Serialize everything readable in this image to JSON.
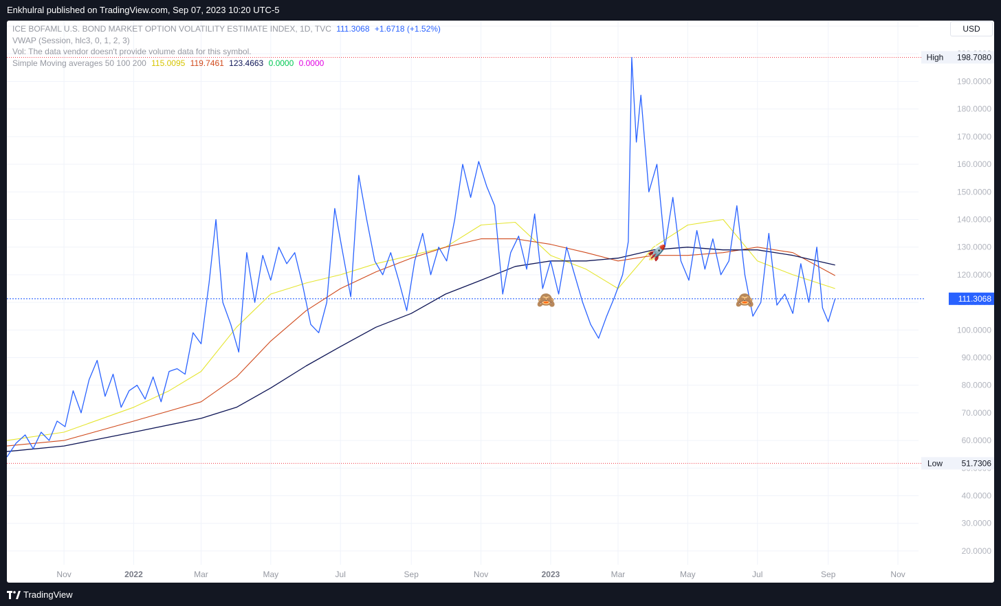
{
  "header": {
    "published_text": "Enkhulral published on TradingView.com, Sep 07, 2023 10:20 UTC-5"
  },
  "legend": {
    "symbol_line": "ICE BOFAML U.S. BOND MARKET OPTION VOLATILITY ESTIMATE INDEX, 1D, TVC",
    "last_value": "111.3068",
    "change": "+1.6718 (+1.52%)",
    "vwap_line": "VWAP (Session, hlc3, 0, 1, 2, 3)",
    "vol_line": "Vol: The data vendor doesn't provide volume data for this symbol.",
    "sma_label": "Simple Moving averages 50 100 200",
    "sma_values": [
      "115.0095",
      "119.7461",
      "123.4663",
      "0.0000",
      "0.0000"
    ]
  },
  "currency_button": "USD",
  "footer": {
    "brand": "TradingView"
  },
  "colors": {
    "price": "#2962ff",
    "sma50": "#e5e52f",
    "sma100": "#d04a1c",
    "sma200": "#0d1455",
    "sma_extra1": "#00c853",
    "sma_extra2": "#e100e1",
    "high_low_line": "#f23645",
    "last_price_line": "#2962ff"
  },
  "chart_data": {
    "type": "line",
    "ylim": [
      15,
      212
    ],
    "y_ticks": [
      20,
      30,
      40,
      50,
      60,
      70,
      80,
      90,
      100,
      110,
      120,
      130,
      140,
      150,
      160,
      170,
      180,
      190,
      200,
      210
    ],
    "x_ticks": [
      {
        "label": "Nov",
        "date": "2021-11-01"
      },
      {
        "label": "2022",
        "date": "2022-01-01"
      },
      {
        "label": "Mar",
        "date": "2022-03-01"
      },
      {
        "label": "May",
        "date": "2022-05-01"
      },
      {
        "label": "Jul",
        "date": "2022-07-01"
      },
      {
        "label": "Sep",
        "date": "2022-09-01"
      },
      {
        "label": "Nov",
        "date": "2022-11-01"
      },
      {
        "label": "2023",
        "date": "2023-01-01"
      },
      {
        "label": "Mar",
        "date": "2023-03-01"
      },
      {
        "label": "May",
        "date": "2023-05-01"
      },
      {
        "label": "Jul",
        "date": "2023-07-01"
      },
      {
        "label": "Sep",
        "date": "2023-09-01"
      },
      {
        "label": "Nov",
        "date": "2023-11-01"
      }
    ],
    "x_range": [
      "2021-09-12",
      "2023-11-19"
    ],
    "high": {
      "label": "High",
      "value": "198.7080",
      "y": 198.708
    },
    "low": {
      "label": "Low",
      "value": "51.7306",
      "y": 51.7306
    },
    "last": {
      "value": "111.3068",
      "y": 111.3068
    },
    "series": [
      {
        "key": "price",
        "points": [
          [
            "2021-09-12",
            54
          ],
          [
            "2021-09-20",
            59
          ],
          [
            "2021-09-28",
            62
          ],
          [
            "2021-10-05",
            57
          ],
          [
            "2021-10-12",
            63
          ],
          [
            "2021-10-19",
            60
          ],
          [
            "2021-10-26",
            67
          ],
          [
            "2021-11-02",
            65
          ],
          [
            "2021-11-09",
            78
          ],
          [
            "2021-11-16",
            70
          ],
          [
            "2021-11-23",
            82
          ],
          [
            "2021-11-30",
            89
          ],
          [
            "2021-12-07",
            76
          ],
          [
            "2021-12-14",
            84
          ],
          [
            "2021-12-21",
            72
          ],
          [
            "2021-12-28",
            78
          ],
          [
            "2022-01-04",
            80
          ],
          [
            "2022-01-11",
            75
          ],
          [
            "2022-01-18",
            83
          ],
          [
            "2022-01-25",
            74
          ],
          [
            "2022-02-01",
            85
          ],
          [
            "2022-02-08",
            86
          ],
          [
            "2022-02-15",
            84
          ],
          [
            "2022-02-22",
            99
          ],
          [
            "2022-03-01",
            95
          ],
          [
            "2022-03-08",
            117
          ],
          [
            "2022-03-14",
            140
          ],
          [
            "2022-03-20",
            110
          ],
          [
            "2022-03-27",
            102
          ],
          [
            "2022-04-03",
            92
          ],
          [
            "2022-04-10",
            128
          ],
          [
            "2022-04-17",
            110
          ],
          [
            "2022-04-24",
            127
          ],
          [
            "2022-05-01",
            118
          ],
          [
            "2022-05-08",
            130
          ],
          [
            "2022-05-15",
            124
          ],
          [
            "2022-05-22",
            128
          ],
          [
            "2022-05-29",
            116
          ],
          [
            "2022-06-05",
            102
          ],
          [
            "2022-06-12",
            99
          ],
          [
            "2022-06-19",
            110
          ],
          [
            "2022-06-26",
            144
          ],
          [
            "2022-07-03",
            128
          ],
          [
            "2022-07-10",
            112
          ],
          [
            "2022-07-17",
            156
          ],
          [
            "2022-07-24",
            140
          ],
          [
            "2022-07-31",
            125
          ],
          [
            "2022-08-07",
            120
          ],
          [
            "2022-08-14",
            128
          ],
          [
            "2022-08-21",
            118
          ],
          [
            "2022-08-28",
            107
          ],
          [
            "2022-09-04",
            125
          ],
          [
            "2022-09-11",
            135
          ],
          [
            "2022-09-18",
            120
          ],
          [
            "2022-09-25",
            130
          ],
          [
            "2022-10-02",
            125
          ],
          [
            "2022-10-09",
            140
          ],
          [
            "2022-10-16",
            160
          ],
          [
            "2022-10-23",
            148
          ],
          [
            "2022-10-30",
            161
          ],
          [
            "2022-11-06",
            152
          ],
          [
            "2022-11-13",
            145
          ],
          [
            "2022-11-20",
            113
          ],
          [
            "2022-11-27",
            128
          ],
          [
            "2022-12-04",
            134
          ],
          [
            "2022-12-11",
            122
          ],
          [
            "2022-12-18",
            142
          ],
          [
            "2022-12-25",
            115
          ],
          [
            "2023-01-01",
            125
          ],
          [
            "2023-01-08",
            113
          ],
          [
            "2023-01-15",
            130
          ],
          [
            "2023-01-22",
            120
          ],
          [
            "2023-01-29",
            110
          ],
          [
            "2023-02-05",
            102
          ],
          [
            "2023-02-12",
            97
          ],
          [
            "2023-02-19",
            105
          ],
          [
            "2023-02-26",
            112
          ],
          [
            "2023-03-05",
            120
          ],
          [
            "2023-03-10",
            132
          ],
          [
            "2023-03-13",
            198.7
          ],
          [
            "2023-03-17",
            168
          ],
          [
            "2023-03-21",
            185
          ],
          [
            "2023-03-28",
            150
          ],
          [
            "2023-04-04",
            160
          ],
          [
            "2023-04-11",
            130
          ],
          [
            "2023-04-18",
            148
          ],
          [
            "2023-04-25",
            125
          ],
          [
            "2023-05-02",
            118
          ],
          [
            "2023-05-09",
            136
          ],
          [
            "2023-05-16",
            122
          ],
          [
            "2023-05-23",
            133
          ],
          [
            "2023-05-30",
            120
          ],
          [
            "2023-06-06",
            125
          ],
          [
            "2023-06-13",
            145
          ],
          [
            "2023-06-20",
            120
          ],
          [
            "2023-06-27",
            105
          ],
          [
            "2023-07-04",
            110
          ],
          [
            "2023-07-11",
            135
          ],
          [
            "2023-07-18",
            109
          ],
          [
            "2023-07-25",
            113
          ],
          [
            "2023-08-01",
            106
          ],
          [
            "2023-08-08",
            124
          ],
          [
            "2023-08-15",
            110
          ],
          [
            "2023-08-22",
            130
          ],
          [
            "2023-08-27",
            108
          ],
          [
            "2023-09-01",
            103
          ],
          [
            "2023-09-07",
            111.3
          ]
        ]
      },
      {
        "key": "sma50",
        "points": [
          [
            "2021-09-12",
            60
          ],
          [
            "2021-11-01",
            63
          ],
          [
            "2022-01-01",
            72
          ],
          [
            "2022-02-01",
            78
          ],
          [
            "2022-03-01",
            85
          ],
          [
            "2022-04-01",
            101
          ],
          [
            "2022-05-01",
            113
          ],
          [
            "2022-06-01",
            117
          ],
          [
            "2022-07-01",
            120
          ],
          [
            "2022-08-01",
            124
          ],
          [
            "2022-09-01",
            127
          ],
          [
            "2022-10-01",
            130
          ],
          [
            "2022-11-01",
            138
          ],
          [
            "2022-12-01",
            139
          ],
          [
            "2023-01-01",
            127
          ],
          [
            "2023-02-01",
            122
          ],
          [
            "2023-03-01",
            115
          ],
          [
            "2023-04-01",
            130
          ],
          [
            "2023-05-01",
            138
          ],
          [
            "2023-06-01",
            140
          ],
          [
            "2023-07-01",
            125
          ],
          [
            "2023-08-01",
            120
          ],
          [
            "2023-09-07",
            115
          ]
        ]
      },
      {
        "key": "sma100",
        "points": [
          [
            "2021-09-12",
            58
          ],
          [
            "2021-11-01",
            60
          ],
          [
            "2022-01-01",
            67
          ],
          [
            "2022-03-01",
            74
          ],
          [
            "2022-04-01",
            83
          ],
          [
            "2022-05-01",
            96
          ],
          [
            "2022-06-01",
            107
          ],
          [
            "2022-07-01",
            115
          ],
          [
            "2022-08-01",
            121
          ],
          [
            "2022-09-01",
            126
          ],
          [
            "2022-10-01",
            130
          ],
          [
            "2022-11-01",
            133
          ],
          [
            "2022-12-01",
            133
          ],
          [
            "2023-01-01",
            131
          ],
          [
            "2023-02-01",
            128
          ],
          [
            "2023-03-01",
            125
          ],
          [
            "2023-04-01",
            127
          ],
          [
            "2023-05-01",
            127
          ],
          [
            "2023-06-01",
            128
          ],
          [
            "2023-07-01",
            130
          ],
          [
            "2023-08-01",
            128
          ],
          [
            "2023-09-07",
            119.7
          ]
        ]
      },
      {
        "key": "sma200",
        "points": [
          [
            "2021-09-12",
            56
          ],
          [
            "2021-11-01",
            58
          ],
          [
            "2022-01-01",
            63
          ],
          [
            "2022-03-01",
            68
          ],
          [
            "2022-04-01",
            72
          ],
          [
            "2022-05-01",
            79
          ],
          [
            "2022-06-01",
            87
          ],
          [
            "2022-07-01",
            94
          ],
          [
            "2022-08-01",
            101
          ],
          [
            "2022-09-01",
            106
          ],
          [
            "2022-10-01",
            113
          ],
          [
            "2022-11-01",
            118
          ],
          [
            "2022-12-01",
            123
          ],
          [
            "2023-01-01",
            125
          ],
          [
            "2023-02-01",
            125
          ],
          [
            "2023-03-01",
            126
          ],
          [
            "2023-04-01",
            129
          ],
          [
            "2023-05-01",
            130
          ],
          [
            "2023-06-01",
            129
          ],
          [
            "2023-07-01",
            129
          ],
          [
            "2023-08-01",
            127
          ],
          [
            "2023-09-07",
            123.5
          ]
        ]
      }
    ],
    "annotations": [
      {
        "emoji": "🙈",
        "date": "2022-12-28",
        "y": 111
      },
      {
        "emoji": "🚀",
        "date": "2023-04-04",
        "y": 128
      },
      {
        "emoji": "🙈",
        "date": "2023-06-20",
        "y": 111
      }
    ]
  }
}
